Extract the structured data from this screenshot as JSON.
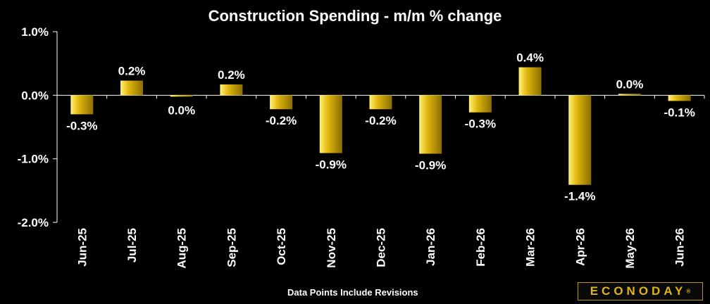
{
  "chart_data": {
    "type": "bar",
    "title": "Construction Spending - m/m % change",
    "categories": [
      "Jun-25",
      "Jul-25",
      "Aug-25",
      "Sep-25",
      "Oct-25",
      "Nov-25",
      "Dec-25",
      "Jan-26",
      "Feb-26",
      "Mar-26",
      "Apr-26",
      "May-26",
      "Jun-26"
    ],
    "values": [
      -0.3,
      0.2,
      0.0,
      0.2,
      -0.2,
      -0.9,
      -0.2,
      -0.9,
      -0.3,
      0.4,
      -1.4,
      0.0,
      -0.1
    ],
    "bar_values": [
      -0.3,
      0.23,
      -0.02,
      0.17,
      -0.22,
      -0.91,
      -0.22,
      -0.92,
      -0.27,
      0.44,
      -1.41,
      0.0,
      -0.09
    ],
    "data_labels": [
      "-0.3%",
      "0.2%",
      "0.0%",
      "0.2%",
      "-0.2%",
      "-0.9%",
      "-0.2%",
      "-0.9%",
      "-0.3%",
      "0.4%",
      "-1.4%",
      "0.0%",
      "-0.1%"
    ],
    "y_ticks": [
      1.0,
      0.0,
      -1.0,
      -2.0
    ],
    "y_tick_labels": [
      "1.0%",
      "0.0%",
      "-1.0%",
      "-2.0%"
    ],
    "ylim": [
      -2.0,
      1.0
    ],
    "xlabel": "",
    "ylabel": "",
    "grid": false,
    "legend": "none",
    "colors": {
      "bar": "#e2b80f",
      "bar_highlight": "#fff27a",
      "bar_shadow": "#8a6d00",
      "axis": "#ffffff",
      "text": "#ffffff",
      "background": "#000000"
    }
  },
  "footer": {
    "note": "Data Points Include Revisions",
    "logo": "ECONODAY",
    "logo_mark": "®"
  }
}
